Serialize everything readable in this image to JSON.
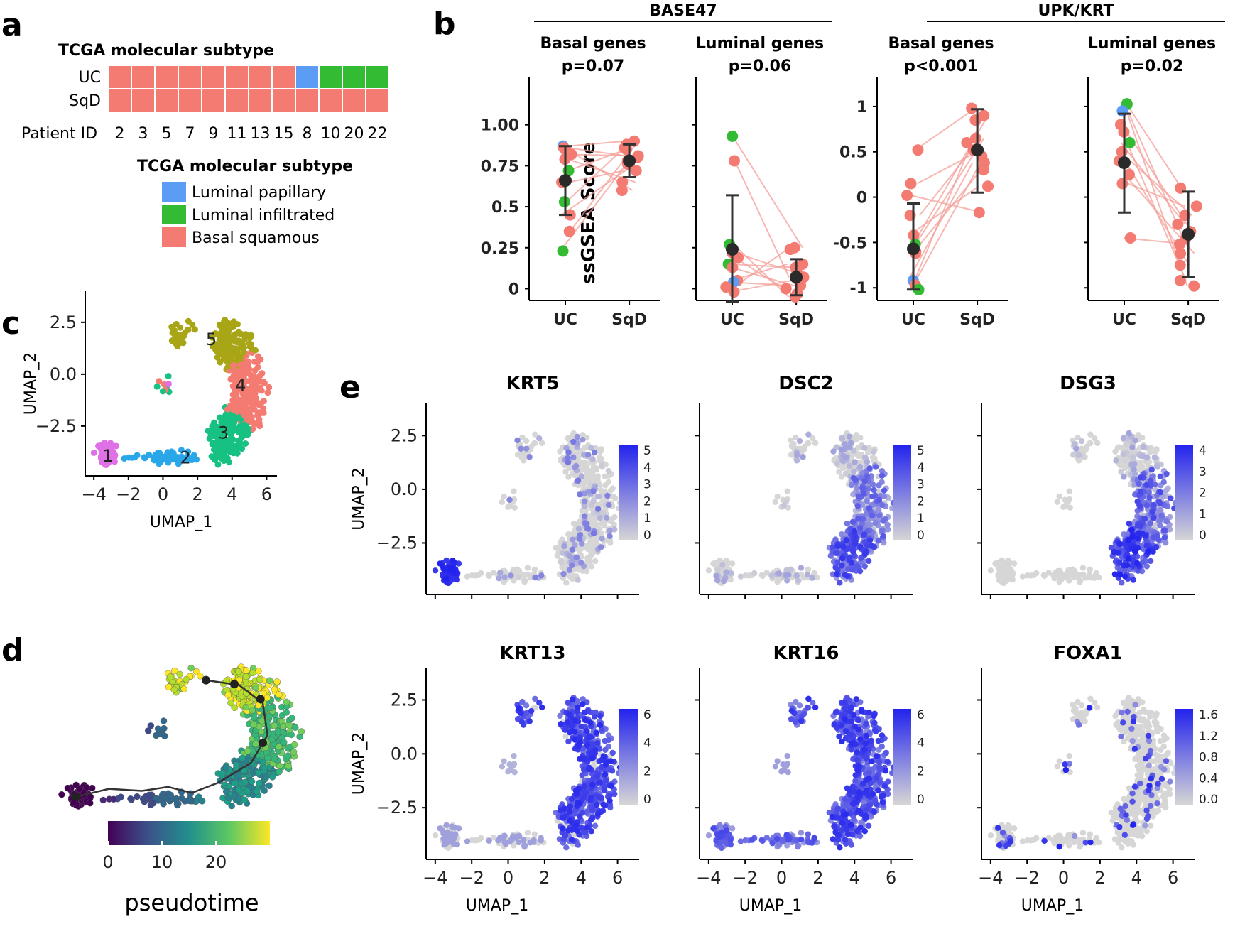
{
  "panel_labels": {
    "a": "a",
    "b": "b",
    "c": "c",
    "d": "d",
    "e": "e"
  },
  "colors": {
    "luminal_papillary": "#5b9cf5",
    "luminal_infiltrated": "#33bb33",
    "basal_squamous": "#f47b72",
    "mean_point": "#2a2a2a",
    "feature_low": "#d6d6d6",
    "feature_high": "#2222ee"
  },
  "panel_a": {
    "title": "TCGA molecular subtype",
    "row_labels": [
      "UC",
      "SqD"
    ],
    "patient_label": "Patient ID",
    "patient_ids": [
      "2",
      "3",
      "5",
      "7",
      "9",
      "11",
      "13",
      "15",
      "8",
      "10",
      "20",
      "22"
    ],
    "uc_subtypes": [
      "basal_squamous",
      "basal_squamous",
      "basal_squamous",
      "basal_squamous",
      "basal_squamous",
      "basal_squamous",
      "basal_squamous",
      "basal_squamous",
      "luminal_papillary",
      "luminal_infiltrated",
      "luminal_infiltrated",
      "luminal_infiltrated"
    ],
    "sqd_subtypes": [
      "basal_squamous",
      "basal_squamous",
      "basal_squamous",
      "basal_squamous",
      "basal_squamous",
      "basal_squamous",
      "basal_squamous",
      "basal_squamous",
      "basal_squamous",
      "basal_squamous",
      "basal_squamous",
      "basal_squamous"
    ],
    "legend_title": "TCGA molecular subtype",
    "legend": [
      {
        "key": "luminal_papillary",
        "label": "Luminal papillary"
      },
      {
        "key": "luminal_infiltrated",
        "label": "Luminal infiltrated"
      },
      {
        "key": "basal_squamous",
        "label": "Basal squamous"
      }
    ]
  },
  "chart_data": [
    {
      "type": "scatter",
      "panel": "b",
      "ylabel": "ssGSEA Score",
      "groups": [
        {
          "name": "BASE47",
          "plots": [
            {
              "title": "Basal genes",
              "pvalue": "p=0.07",
              "categories": [
                "UC",
                "SqD"
              ],
              "ylim": [
                -0.05,
                1.25
              ],
              "yticks": [
                0,
                0.25,
                0.5,
                0.75,
                1.0
              ],
              "ytick_labels": [
                "0",
                "0.25",
                "0.5",
                "0.75",
                "1.00"
              ],
              "uc": [
                0.87,
                0.86,
                0.85,
                0.82,
                0.79,
                0.72,
                0.65,
                0.53,
                0.45,
                0.35,
                0.23
              ],
              "uc_colors": [
                "luminal_papillary",
                "basal_squamous",
                "basal_squamous",
                "basal_squamous",
                "basal_squamous",
                "luminal_infiltrated",
                "basal_squamous",
                "luminal_infiltrated",
                "basal_squamous",
                "basal_squamous",
                "luminal_infiltrated"
              ],
              "sqd": [
                0.9,
                0.88,
                0.86,
                0.85,
                0.81,
                0.8,
                0.78,
                0.76,
                0.72,
                0.65,
                0.6
              ],
              "mean": {
                "UC": 0.66,
                "SqD": 0.78
              },
              "sd": {
                "UC": [
                  0.45,
                  0.87
                ],
                "SqD": [
                  0.68,
                  0.88
                ]
              }
            },
            {
              "title": "Luminal genes",
              "pvalue": "p=0.06",
              "categories": [
                "UC",
                "SqD"
              ],
              "ylim": [
                -0.05,
                1.25
              ],
              "yticks": [
                0,
                0.25,
                0.5,
                0.75,
                1.0
              ],
              "ytick_labels": [
                "",
                "",
                "",
                "",
                ""
              ],
              "uc": [
                0.93,
                0.78,
                0.27,
                0.22,
                0.19,
                0.15,
                0.13,
                0.05,
                0.04,
                0.01,
                -0.02
              ],
              "uc_colors": [
                "luminal_infiltrated",
                "basal_squamous",
                "luminal_infiltrated",
                "basal_squamous",
                "basal_squamous",
                "luminal_infiltrated",
                "basal_squamous",
                "basal_squamous",
                "luminal_papillary",
                "basal_squamous",
                "basal_squamous"
              ],
              "sqd": [
                0.25,
                0.24,
                0.15,
                0.13,
                0.1,
                0.07,
                0.05,
                0.02,
                0.0,
                -0.03,
                -0.05
              ],
              "mean": {
                "UC": 0.24,
                "SqD": 0.07
              },
              "sd": {
                "UC": [
                  -0.08,
                  0.57
                ],
                "SqD": [
                  -0.04,
                  0.18
                ]
              }
            }
          ]
        },
        {
          "name": "UPK/KRT",
          "plots": [
            {
              "title": "Basal genes",
              "pvalue": "p<0.001",
              "categories": [
                "UC",
                "SqD"
              ],
              "ylim": [
                -1.1,
                1.25
              ],
              "yticks": [
                -1,
                -0.5,
                0,
                0.5,
                1
              ],
              "ytick_labels": [
                "-1",
                "-0.5",
                "0",
                "0.5",
                "1"
              ],
              "uc": [
                0.52,
                0.15,
                0.02,
                -0.2,
                -0.42,
                -0.52,
                -0.6,
                -0.62,
                -0.92,
                -0.97,
                -1.02
              ],
              "uc_colors": [
                "basal_squamous",
                "basal_squamous",
                "basal_squamous",
                "basal_squamous",
                "basal_squamous",
                "luminal_infiltrated",
                "basal_squamous",
                "basal_squamous",
                "luminal_papillary",
                "basal_squamous",
                "luminal_infiltrated"
              ],
              "sqd": [
                0.98,
                0.9,
                0.85,
                0.65,
                0.6,
                0.52,
                0.45,
                0.38,
                0.3,
                0.12,
                -0.17
              ],
              "mean": {
                "UC": -0.57,
                "SqD": 0.52
              },
              "sd": {
                "UC": [
                  -1.02,
                  -0.07
                ],
                "SqD": [
                  0.05,
                  0.97
                ]
              }
            },
            {
              "title": "Luminal genes",
              "pvalue": "p=0.02",
              "categories": [
                "UC",
                "SqD"
              ],
              "ylim": [
                -1.1,
                1.25
              ],
              "yticks": [
                -1,
                -0.5,
                0,
                0.5,
                1
              ],
              "ytick_labels": [
                "",
                "",
                "",
                "",
                ""
              ],
              "uc": [
                1.03,
                1.02,
                0.95,
                0.8,
                0.72,
                0.6,
                0.5,
                0.4,
                0.25,
                0.15,
                -0.45
              ],
              "uc_colors": [
                "luminal_infiltrated",
                "luminal_infiltrated",
                "luminal_papillary",
                "basal_squamous",
                "basal_squamous",
                "luminal_infiltrated",
                "basal_squamous",
                "basal_squamous",
                "basal_squamous",
                "basal_squamous",
                "basal_squamous"
              ],
              "sqd": [
                0.1,
                -0.1,
                -0.2,
                -0.3,
                -0.38,
                -0.45,
                -0.52,
                -0.62,
                -0.75,
                -0.92,
                -0.98
              ],
              "mean": {
                "UC": 0.38,
                "SqD": -0.41
              },
              "sd": {
                "UC": [
                  -0.17,
                  0.92
                ],
                "SqD": [
                  -0.88,
                  0.06
                ]
              }
            }
          ]
        }
      ]
    },
    {
      "type": "scatter",
      "panel": "c",
      "xlabel": "UMAP_1",
      "ylabel": "UMAP_2",
      "xlim": [
        -4.5,
        6.6
      ],
      "ylim": [
        -4.9,
        4.0
      ],
      "xticks": [
        -4,
        -2,
        0,
        2,
        4,
        6
      ],
      "xtick_labels": [
        "−4",
        "−2",
        "0",
        "2",
        "4",
        "6"
      ],
      "yticks": [
        -2.5,
        0,
        2.5
      ],
      "ytick_labels": [
        "−2.5",
        "0.0",
        "2.5"
      ],
      "clusters": [
        {
          "id": "1",
          "label": "1",
          "color": "#e070e6",
          "center": [
            -3.2,
            -3.9
          ]
        },
        {
          "id": "2",
          "label": "2",
          "color": "#2aa7e8",
          "center": [
            1.3,
            -4.0
          ]
        },
        {
          "id": "3",
          "label": "3",
          "color": "#16c182",
          "center": [
            3.5,
            -2.8
          ]
        },
        {
          "id": "4",
          "label": "4",
          "color": "#f47b72",
          "center": [
            4.5,
            -0.5
          ]
        },
        {
          "id": "5",
          "label": "5",
          "color": "#a8a617",
          "center": [
            2.8,
            1.7
          ]
        }
      ]
    },
    {
      "type": "scatter",
      "panel": "d",
      "colorbar": {
        "label": "pseudotime",
        "ticks": [
          "0",
          "10",
          "20"
        ],
        "range": [
          0,
          30
        ]
      },
      "trajectory_nodes": [
        "root",
        "mid",
        "late",
        "branch",
        "top"
      ]
    },
    {
      "type": "scatter",
      "panel": "e",
      "xlabel": "UMAP_1",
      "ylabel": "UMAP_2",
      "xticks": [
        -4,
        -2,
        0,
        2,
        4,
        6
      ],
      "xtick_labels": [
        "−4",
        "−2",
        "0",
        "2",
        "4",
        "6"
      ],
      "yticks": [
        -2.5,
        0,
        2.5
      ],
      "ytick_labels": [
        "−2.5",
        "0.0",
        "2.5"
      ],
      "features": [
        {
          "gene": "KRT5",
          "max": 5,
          "cb_ticks": [
            "5",
            "4",
            "3",
            "2",
            "1",
            "0"
          ],
          "pattern": "krt5"
        },
        {
          "gene": "DSC2",
          "max": 5,
          "cb_ticks": [
            "5",
            "4",
            "3",
            "2",
            "1",
            "0"
          ],
          "pattern": "dsc2"
        },
        {
          "gene": "DSG3",
          "max": 4.5,
          "cb_ticks": [
            "4",
            "3",
            "2",
            "1",
            "0"
          ],
          "pattern": "dsg3"
        },
        {
          "gene": "KRT13",
          "max": 6.5,
          "cb_ticks": [
            "6",
            "4",
            "2",
            "0"
          ],
          "pattern": "krt13"
        },
        {
          "gene": "KRT16",
          "max": 6.5,
          "cb_ticks": [
            "6",
            "4",
            "2",
            "0"
          ],
          "pattern": "krt16"
        },
        {
          "gene": "FOXA1",
          "max": 1.6,
          "cb_ticks": [
            "1.6",
            "1.2",
            "0.8",
            "0.4",
            "0.0"
          ],
          "pattern": "foxa1"
        }
      ]
    }
  ]
}
